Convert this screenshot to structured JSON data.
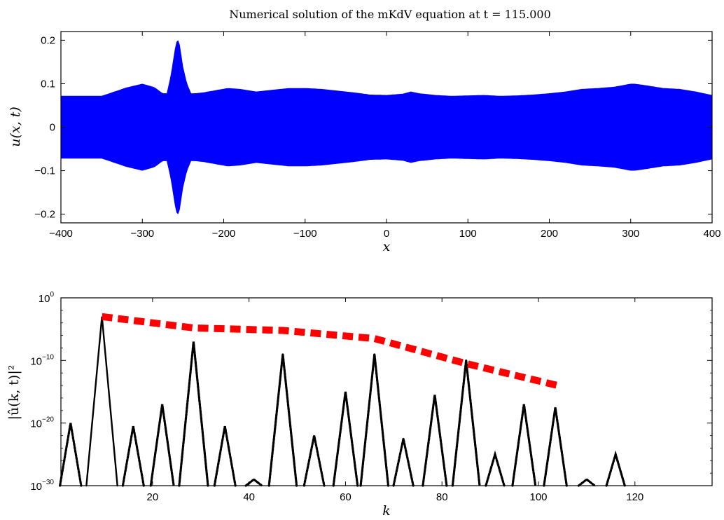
{
  "chart_data": [
    {
      "type": "line",
      "title": "Numerical solution of the mKdV equation at t = 115.000",
      "xlabel": "x",
      "ylabel": "u(x, t)",
      "xlim": [
        -400,
        400
      ],
      "ylim": [
        -0.22,
        0.22
      ],
      "x_ticks": [
        "−400",
        "−300",
        "−200",
        "−100",
        "0",
        "100",
        "200",
        "300",
        "400"
      ],
      "x_tick_values": [
        -400,
        -300,
        -200,
        -100,
        0,
        100,
        200,
        300,
        400
      ],
      "y_ticks": [
        "0.2",
        "0.1",
        "0",
        "−0.1",
        "−0.2"
      ],
      "y_tick_values": [
        0.2,
        0.1,
        0,
        -0.1,
        -0.2
      ],
      "grid": false,
      "series_color": "#0000ff",
      "rendering": "densely oscillating wave; filled band between -envelope and +envelope",
      "envelope": {
        "x": [
          -400,
          -360,
          -350,
          -320,
          -300,
          -285,
          -275,
          -270,
          -265,
          -260,
          -257,
          -254,
          -250,
          -245,
          -240,
          -235,
          -225,
          -210,
          -195,
          -180,
          -160,
          -140,
          -120,
          -100,
          -80,
          -60,
          -40,
          -20,
          0,
          20,
          30,
          40,
          60,
          80,
          100,
          120,
          140,
          160,
          180,
          200,
          220,
          240,
          260,
          280,
          300,
          305,
          320,
          340,
          360,
          380,
          400
        ],
        "y": [
          0.072,
          0.072,
          0.072,
          0.091,
          0.1,
          0.092,
          0.078,
          0.078,
          0.12,
          0.18,
          0.205,
          0.19,
          0.14,
          0.1,
          0.078,
          0.078,
          0.08,
          0.085,
          0.09,
          0.088,
          0.082,
          0.086,
          0.09,
          0.09,
          0.088,
          0.084,
          0.08,
          0.075,
          0.074,
          0.077,
          0.082,
          0.078,
          0.074,
          0.072,
          0.073,
          0.074,
          0.072,
          0.073,
          0.075,
          0.078,
          0.082,
          0.088,
          0.09,
          0.093,
          0.1,
          0.1,
          0.096,
          0.09,
          0.088,
          0.082,
          0.074
        ]
      }
    },
    {
      "type": "scatter",
      "xlabel": "k",
      "ylabel": "|û(k, t)|²",
      "yscale": "log",
      "xlim": [
        1,
        136
      ],
      "ylim": [
        1e-30,
        1
      ],
      "x_ticks": [
        "20",
        "40",
        "60",
        "80",
        "100",
        "120"
      ],
      "x_tick_values": [
        20,
        40,
        60,
        80,
        100,
        120
      ],
      "y_ticks": [
        "10",
        "10",
        "10",
        "10"
      ],
      "y_tick_exponents": [
        "0",
        "−10",
        "−20",
        "−30"
      ],
      "y_tick_values": [
        1,
        1e-10,
        1e-20,
        1e-30
      ],
      "grid": false,
      "spectrum_color": "#000000",
      "peaks": {
        "k": [
          3,
          9.5,
          16,
          22,
          28.5,
          35,
          41,
          47,
          53.5,
          60,
          66,
          72,
          78.5,
          85,
          91,
          97,
          103.5,
          110,
          116
        ],
        "log10": [
          -20,
          -3,
          -20.5,
          -17,
          -7,
          -20.5,
          -29,
          -9,
          -22,
          -15,
          -9,
          -22.5,
          -15.5,
          -10,
          -25,
          -17,
          -17.5,
          -29,
          -25
        ]
      },
      "trend_line": {
        "color": "#ff0000",
        "style": "dashed",
        "k": [
          9.5,
          28.5,
          47,
          66,
          85,
          104
        ],
        "log10": [
          -3,
          -4.8,
          -5.2,
          -6.5,
          -10.5,
          -14
        ]
      }
    }
  ]
}
